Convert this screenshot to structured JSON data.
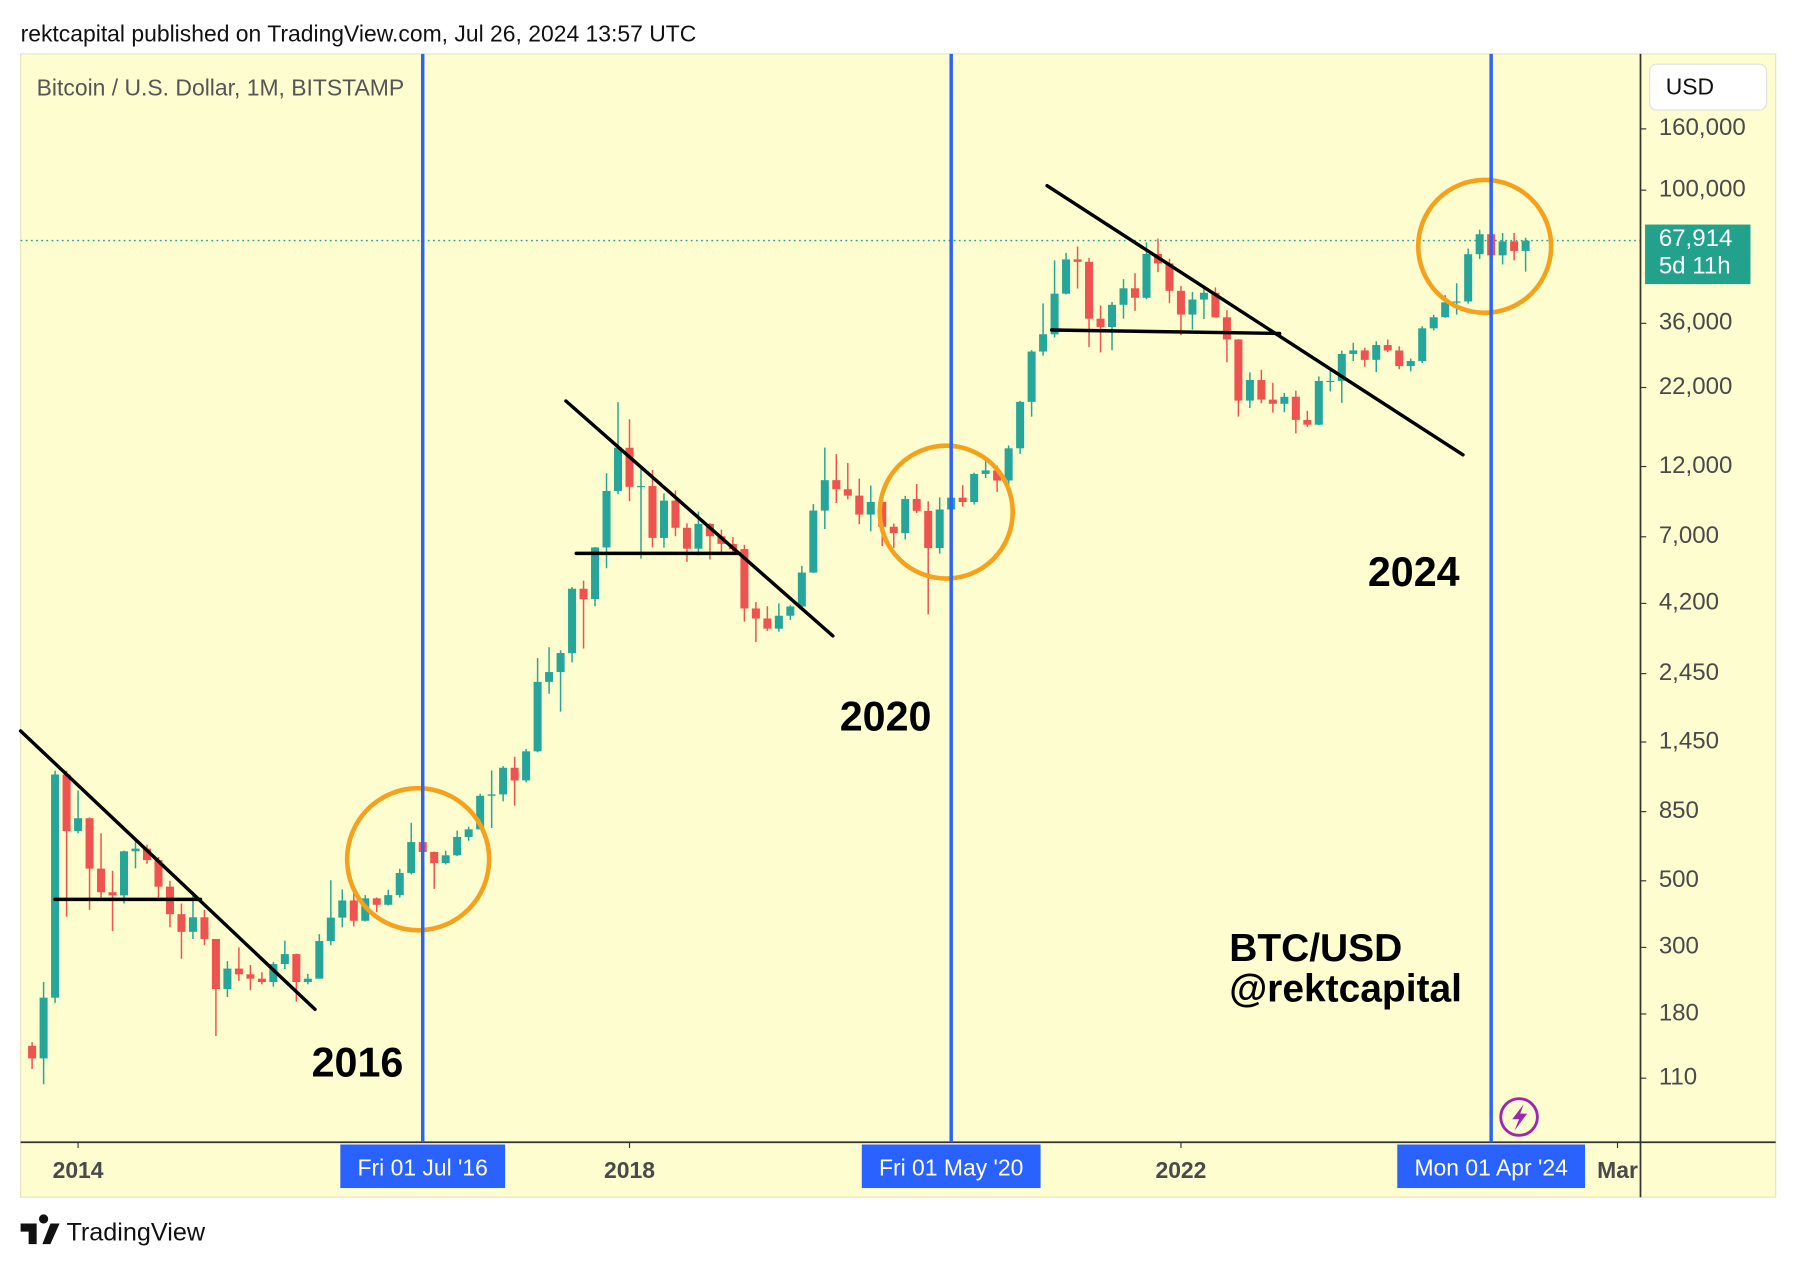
{
  "header": "rektcapital published on TradingView.com, Jul 26, 2024 13:57 UTC",
  "footer": "TradingView",
  "chart_data": {
    "type": "candlestick",
    "title": "Bitcoin / U.S. Dollar, 1M, BITSTAMP",
    "currency": "USD",
    "log_scale": true,
    "up_color": "#26a69a",
    "down_color": "#ef5350",
    "x": [
      "2013-09",
      "2013-10",
      "2013-11",
      "2013-12",
      "2014-01",
      "2014-02",
      "2014-03",
      "2014-04",
      "2014-05",
      "2014-06",
      "2014-07",
      "2014-08",
      "2014-09",
      "2014-10",
      "2014-11",
      "2014-12",
      "2015-01",
      "2015-02",
      "2015-03",
      "2015-04",
      "2015-05",
      "2015-06",
      "2015-07",
      "2015-08",
      "2015-09",
      "2015-10",
      "2015-11",
      "2015-12",
      "2016-01",
      "2016-02",
      "2016-03",
      "2016-04",
      "2016-05",
      "2016-06",
      "2016-07",
      "2016-08",
      "2016-09",
      "2016-10",
      "2016-11",
      "2016-12",
      "2017-01",
      "2017-02",
      "2017-03",
      "2017-04",
      "2017-05",
      "2017-06",
      "2017-07",
      "2017-08",
      "2017-09",
      "2017-10",
      "2017-11",
      "2017-12",
      "2018-01",
      "2018-02",
      "2018-03",
      "2018-04",
      "2018-05",
      "2018-06",
      "2018-07",
      "2018-08",
      "2018-09",
      "2018-10",
      "2018-11",
      "2018-12",
      "2019-01",
      "2019-02",
      "2019-03",
      "2019-04",
      "2019-05",
      "2019-06",
      "2019-07",
      "2019-08",
      "2019-09",
      "2019-10",
      "2019-11",
      "2019-12",
      "2020-01",
      "2020-02",
      "2020-03",
      "2020-04",
      "2020-05",
      "2020-06",
      "2020-07",
      "2020-08",
      "2020-09",
      "2020-10",
      "2020-11",
      "2020-12",
      "2021-01",
      "2021-02",
      "2021-03",
      "2021-04",
      "2021-05",
      "2021-06",
      "2021-07",
      "2021-08",
      "2021-09",
      "2021-10",
      "2021-11",
      "2021-12",
      "2022-01",
      "2022-02",
      "2022-03",
      "2022-04",
      "2022-05",
      "2022-06",
      "2022-07",
      "2022-08",
      "2022-09",
      "2022-10",
      "2022-11",
      "2022-12",
      "2023-01",
      "2023-02",
      "2023-03",
      "2023-04",
      "2023-05",
      "2023-06",
      "2023-07",
      "2023-08",
      "2023-09",
      "2023-10",
      "2023-11",
      "2023-12",
      "2024-01",
      "2024-02",
      "2024-03",
      "2024-04",
      "2024-05",
      "2024-06",
      "2024-07"
    ],
    "open": [
      141,
      128,
      204,
      1130,
      732,
      808,
      549,
      458,
      447,
      627,
      640,
      586,
      478,
      387,
      338,
      378,
      320,
      218,
      255,
      244,
      236,
      230,
      264,
      285,
      230,
      236,
      315,
      377,
      430,
      368,
      437,
      416,
      448,
      531,
      673,
      624,
      573,
      608,
      700,
      742,
      960,
      970,
      1190,
      1080,
      1350,
      2300,
      2480,
      2870,
      4700,
      4340,
      6450,
      9950,
      13860,
      10270,
      10330,
      6940,
      9240,
      7500,
      6390,
      7730,
      7030,
      6630,
      6370,
      4040,
      3740,
      3460,
      3820,
      4100,
      5320,
      8560,
      10810,
      10080,
      9600,
      8300,
      9150,
      7560,
      7200,
      9350,
      8540,
      6420,
      8630,
      9450,
      9140,
      11340,
      11650,
      10780,
      13800,
      19710,
      28990,
      33100,
      45200,
      58800,
      57700,
      37300,
      35000,
      41500,
      47100,
      43800,
      61300,
      57000,
      46200,
      38500,
      43200,
      45500,
      37700,
      31800,
      19900,
      23300,
      20050,
      19420,
      20490,
      17160,
      16540,
      23130,
      23150,
      28470,
      29250,
      27200,
      30470,
      29230,
      25930,
      26960,
      34650,
      37720,
      42280,
      42580,
      61180,
      71300,
      60650,
      67500,
      62750
    ],
    "high": [
      145,
      230,
      1163,
      1163,
      1000,
      813,
      720,
      540,
      630,
      680,
      660,
      600,
      500,
      420,
      460,
      400,
      320,
      270,
      300,
      262,
      248,
      268,
      316,
      286,
      245,
      332,
      502,
      468,
      462,
      448,
      440,
      467,
      548,
      780,
      704,
      626,
      630,
      735,
      757,
      975,
      1165,
      1205,
      1295,
      1375,
      2760,
      3000,
      2930,
      4760,
      5000,
      6470,
      11400,
      19660,
      17250,
      11800,
      11700,
      9760,
      9990,
      7760,
      8500,
      7760,
      7400,
      6980,
      6580,
      4240,
      4110,
      4200,
      4140,
      5600,
      9000,
      13880,
      13200,
      12330,
      10930,
      10370,
      9520,
      7750,
      9580,
      10500,
      9190,
      9470,
      10080,
      10400,
      11450,
      12480,
      12080,
      14100,
      19860,
      29300,
      41950,
      58350,
      61780,
      64900,
      59500,
      41300,
      42400,
      50500,
      52900,
      67000,
      69000,
      59100,
      47900,
      45800,
      48200,
      47400,
      39800,
      31900,
      24700,
      25200,
      22800,
      21100,
      21480,
      18400,
      23960,
      25240,
      29200,
      31000,
      29840,
      31390,
      31800,
      30200,
      27480,
      35200,
      38430,
      44700,
      48970,
      63900,
      73800,
      72800,
      71950,
      71980,
      69400
    ],
    "low": [
      118,
      105,
      196,
      380,
      720,
      400,
      440,
      340,
      420,
      550,
      570,
      440,
      350,
      275,
      320,
      305,
      152,
      205,
      232,
      216,
      226,
      222,
      254,
      198,
      226,
      236,
      305,
      350,
      352,
      366,
      393,
      414,
      440,
      525,
      470,
      470,
      567,
      604,
      680,
      742,
      750,
      920,
      890,
      1065,
      1340,
      2100,
      1830,
      2670,
      2970,
      4110,
      5500,
      9700,
      9200,
      5920,
      6450,
      6440,
      7030,
      5780,
      6070,
      5880,
      6100,
      6200,
      3650,
      3120,
      3400,
      3380,
      3700,
      4060,
      5300,
      7430,
      9070,
      9330,
      7710,
      7300,
      6520,
      6430,
      6860,
      8400,
      3860,
      6150,
      8120,
      8830,
      8970,
      10990,
      9880,
      10370,
      13220,
      17600,
      28100,
      32300,
      44950,
      47000,
      30000,
      28800,
      29300,
      37300,
      39600,
      43300,
      53300,
      42000,
      32900,
      34300,
      37200,
      37600,
      26700,
      17600,
      18800,
      19500,
      18150,
      18200,
      15480,
      16250,
      16500,
      21350,
      19550,
      26950,
      25800,
      24750,
      28860,
      25330,
      24900,
      26540,
      34120,
      37600,
      38500,
      41880,
      59000,
      56500,
      56550,
      58400,
      53500
    ],
    "close": [
      128,
      204,
      1130,
      732,
      808,
      549,
      458,
      447,
      627,
      640,
      586,
      478,
      387,
      338,
      378,
      320,
      218,
      255,
      244,
      236,
      230,
      264,
      285,
      230,
      236,
      315,
      377,
      430,
      368,
      437,
      416,
      448,
      531,
      673,
      624,
      573,
      608,
      700,
      742,
      960,
      970,
      1190,
      1080,
      1350,
      2300,
      2480,
      2870,
      4700,
      4340,
      6450,
      9950,
      13860,
      10270,
      10330,
      6940,
      9240,
      7500,
      6390,
      7730,
      7030,
      6630,
      6370,
      4040,
      3740,
      3460,
      3820,
      4100,
      5320,
      8560,
      10810,
      10080,
      9600,
      8300,
      9150,
      7560,
      7200,
      9350,
      8540,
      6420,
      8630,
      9450,
      9140,
      11340,
      11650,
      10780,
      13800,
      19710,
      28990,
      33100,
      45200,
      58800,
      57700,
      37300,
      35000,
      41500,
      47100,
      43800,
      61300,
      57000,
      46200,
      38500,
      43200,
      45500,
      37700,
      31800,
      19900,
      23300,
      20050,
      19420,
      20490,
      17160,
      16540,
      23130,
      23150,
      28470,
      29250,
      27200,
      30470,
      29230,
      25930,
      26960,
      34650,
      37720,
      42280,
      42580,
      61180,
      71300,
      60650,
      67500,
      62750,
      67914
    ],
    "xlim": [
      "2013-08",
      "2025-05"
    ],
    "xticks": [
      {
        "value": "2014-01",
        "label": "2014"
      },
      {
        "value": "2018-01",
        "label": "2018"
      },
      {
        "value": "2022-01",
        "label": "2022"
      },
      {
        "value": "2025-03",
        "label": "Mar"
      }
    ],
    "ylim": [
      67.3,
      284400
    ],
    "yticks": [
      {
        "value": 160000,
        "label": "160,000"
      },
      {
        "value": 100000,
        "label": "100,000"
      },
      {
        "value": 36000,
        "label": "36,000"
      },
      {
        "value": 22000,
        "label": "22,000"
      },
      {
        "value": 12000,
        "label": "12,000"
      },
      {
        "value": 7000,
        "label": "7,000"
      },
      {
        "value": 4200,
        "label": "4,200"
      },
      {
        "value": 2450,
        "label": "2,450"
      },
      {
        "value": 1450,
        "label": "1,450"
      },
      850,
      500,
      300,
      180,
      110
    ],
    "marker_color": "#2962ff",
    "markers": [
      {
        "x": "2016-07",
        "label": "Fri 01 Jul '16"
      },
      {
        "x": "2020-05",
        "label": "Fri 01 May '20"
      },
      {
        "x": "2024-04",
        "label": "Mon 01 Apr '24"
      }
    ],
    "last_price": {
      "value": 67914,
      "label": "67,914",
      "countdown": "5d 11h",
      "color": "#22a18c"
    },
    "annotations": [
      "2016",
      "2020",
      "2024",
      "BTC/USD",
      "@rektcapital"
    ]
  }
}
